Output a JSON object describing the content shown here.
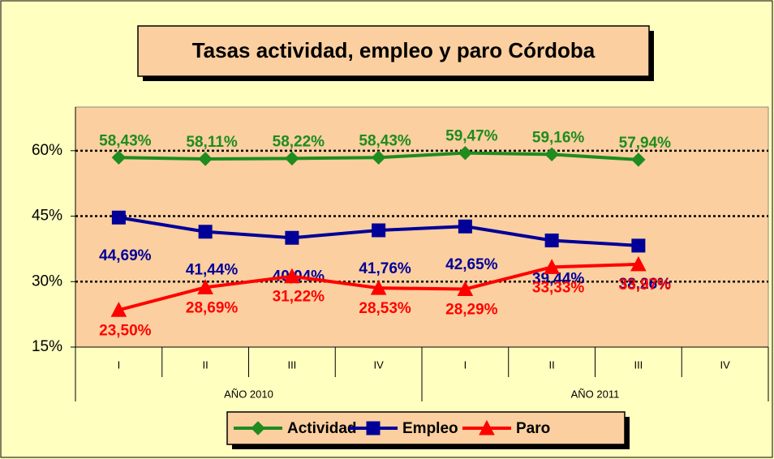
{
  "chart_data": {
    "type": "line",
    "title": "Tasas actividad, empleo y paro Córdoba",
    "categories": [
      "I",
      "II",
      "III",
      "IV",
      "I",
      "II",
      "III",
      "IV"
    ],
    "category_groups": [
      "AÑO 2010",
      "AÑO 2011"
    ],
    "series": [
      {
        "name": "Actividad",
        "color": "#1e8c1e",
        "marker": "diamond",
        "values": [
          58.43,
          58.11,
          58.22,
          58.43,
          59.47,
          59.16,
          57.94,
          null
        ],
        "value_labels": [
          "58,43%",
          "58,11%",
          "58,22%",
          "58,43%",
          "59,47%",
          "59,16%",
          "57,94%",
          null
        ]
      },
      {
        "name": "Empleo",
        "color": "#000099",
        "marker": "square",
        "values": [
          44.69,
          41.44,
          40.04,
          41.76,
          42.65,
          39.44,
          38.26,
          null
        ],
        "value_labels": [
          "44,69%",
          "41,44%",
          "40,04%",
          "41,76%",
          "42,65%",
          "39,44%",
          "38,26%",
          null
        ]
      },
      {
        "name": "Paro",
        "color": "#ff0000",
        "marker": "triangle",
        "values": [
          23.5,
          28.69,
          31.22,
          28.53,
          28.29,
          33.33,
          33.97,
          null
        ],
        "value_labels": [
          "23,50%",
          "28,69%",
          "31,22%",
          "28,53%",
          "28,29%",
          "33,33%",
          "33,97%",
          null
        ]
      }
    ],
    "ylim": [
      15,
      70
    ],
    "yticks": [
      {
        "value": 15,
        "label": "15%"
      },
      {
        "value": 30,
        "label": "30%"
      },
      {
        "value": 45,
        "label": "45%"
      },
      {
        "value": 60,
        "label": "60%"
      }
    ],
    "grid": true,
    "legend": "bottom"
  }
}
